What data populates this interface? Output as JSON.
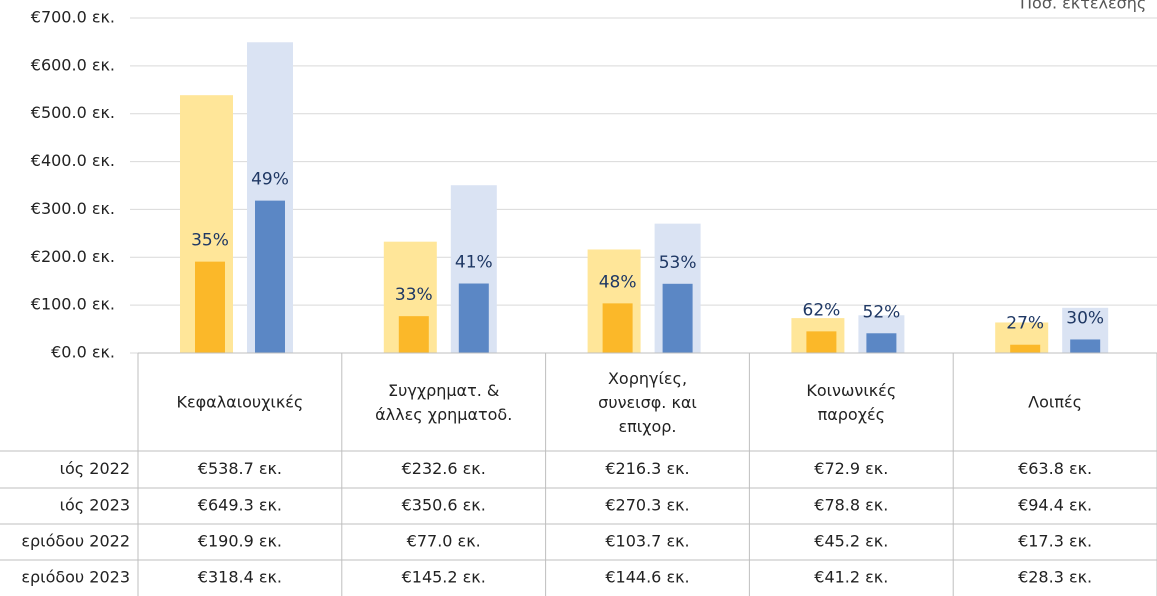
{
  "chart_data": {
    "type": "bar",
    "corner_text": "Ποσ. εκτέλεσης",
    "categories": [
      "Κεφαλαιουχικές",
      "Συγχρηματ. &\nάλλες χρηματοδ.",
      "Χορηγίες,\nσυνεισφ. και\nεπιχορ.",
      "Κοινωνικές\nπαροχές",
      "Λοιπές"
    ],
    "series": [
      {
        "name": "ιός 2022",
        "color": "#ffe699",
        "values": [
          538.7,
          232.6,
          216.3,
          72.9,
          63.8
        ],
        "value_labels": [
          "€538.7 εκ.",
          "€232.6 εκ.",
          "€216.3 εκ.",
          "€72.9 εκ.",
          "€63.8 εκ."
        ]
      },
      {
        "name": "ιός 2023",
        "color": "#dae3f3",
        "values": [
          649.3,
          350.6,
          270.3,
          78.8,
          94.4
        ],
        "value_labels": [
          "€649.3 εκ.",
          "€350.6 εκ.",
          "€270.3 εκ.",
          "€78.8 εκ.",
          "€94.4 εκ."
        ]
      },
      {
        "name": "εριόδου 2022",
        "color": "#fbb829",
        "values": [
          190.9,
          77.0,
          103.7,
          45.2,
          17.3
        ],
        "value_labels": [
          "€190.9 εκ.",
          "€77.0 εκ.",
          "€103.7 εκ.",
          "€45.2 εκ.",
          "€17.3 εκ."
        ],
        "ratio_labels": [
          "35%",
          "33%",
          "48%",
          "62%",
          "27%"
        ]
      },
      {
        "name": "εριόδου 2023",
        "color": "#5b87c5",
        "values": [
          318.4,
          145.2,
          144.6,
          41.2,
          28.3
        ],
        "value_labels": [
          "€318.4 εκ.",
          "€145.2 εκ.",
          "€144.6 εκ.",
          "€41.2 εκ.",
          "€28.3 εκ."
        ],
        "ratio_labels": [
          "49%",
          "41%",
          "53%",
          "52%",
          "30%"
        ]
      }
    ],
    "ylim": [
      0,
      700
    ],
    "yticks": [
      {
        "value": 0,
        "label": "€0.0 εκ."
      },
      {
        "value": 100,
        "label": "€100.0 εκ."
      },
      {
        "value": 200,
        "label": "€200.0 εκ."
      },
      {
        "value": 300,
        "label": "€300.0 εκ."
      },
      {
        "value": 400,
        "label": "€400.0 εκ."
      },
      {
        "value": 500,
        "label": "€500.0 εκ."
      },
      {
        "value": 600,
        "label": "€600.0 εκ."
      },
      {
        "value": 700,
        "label": "€700.0 εκ."
      }
    ],
    "grid": true
  }
}
